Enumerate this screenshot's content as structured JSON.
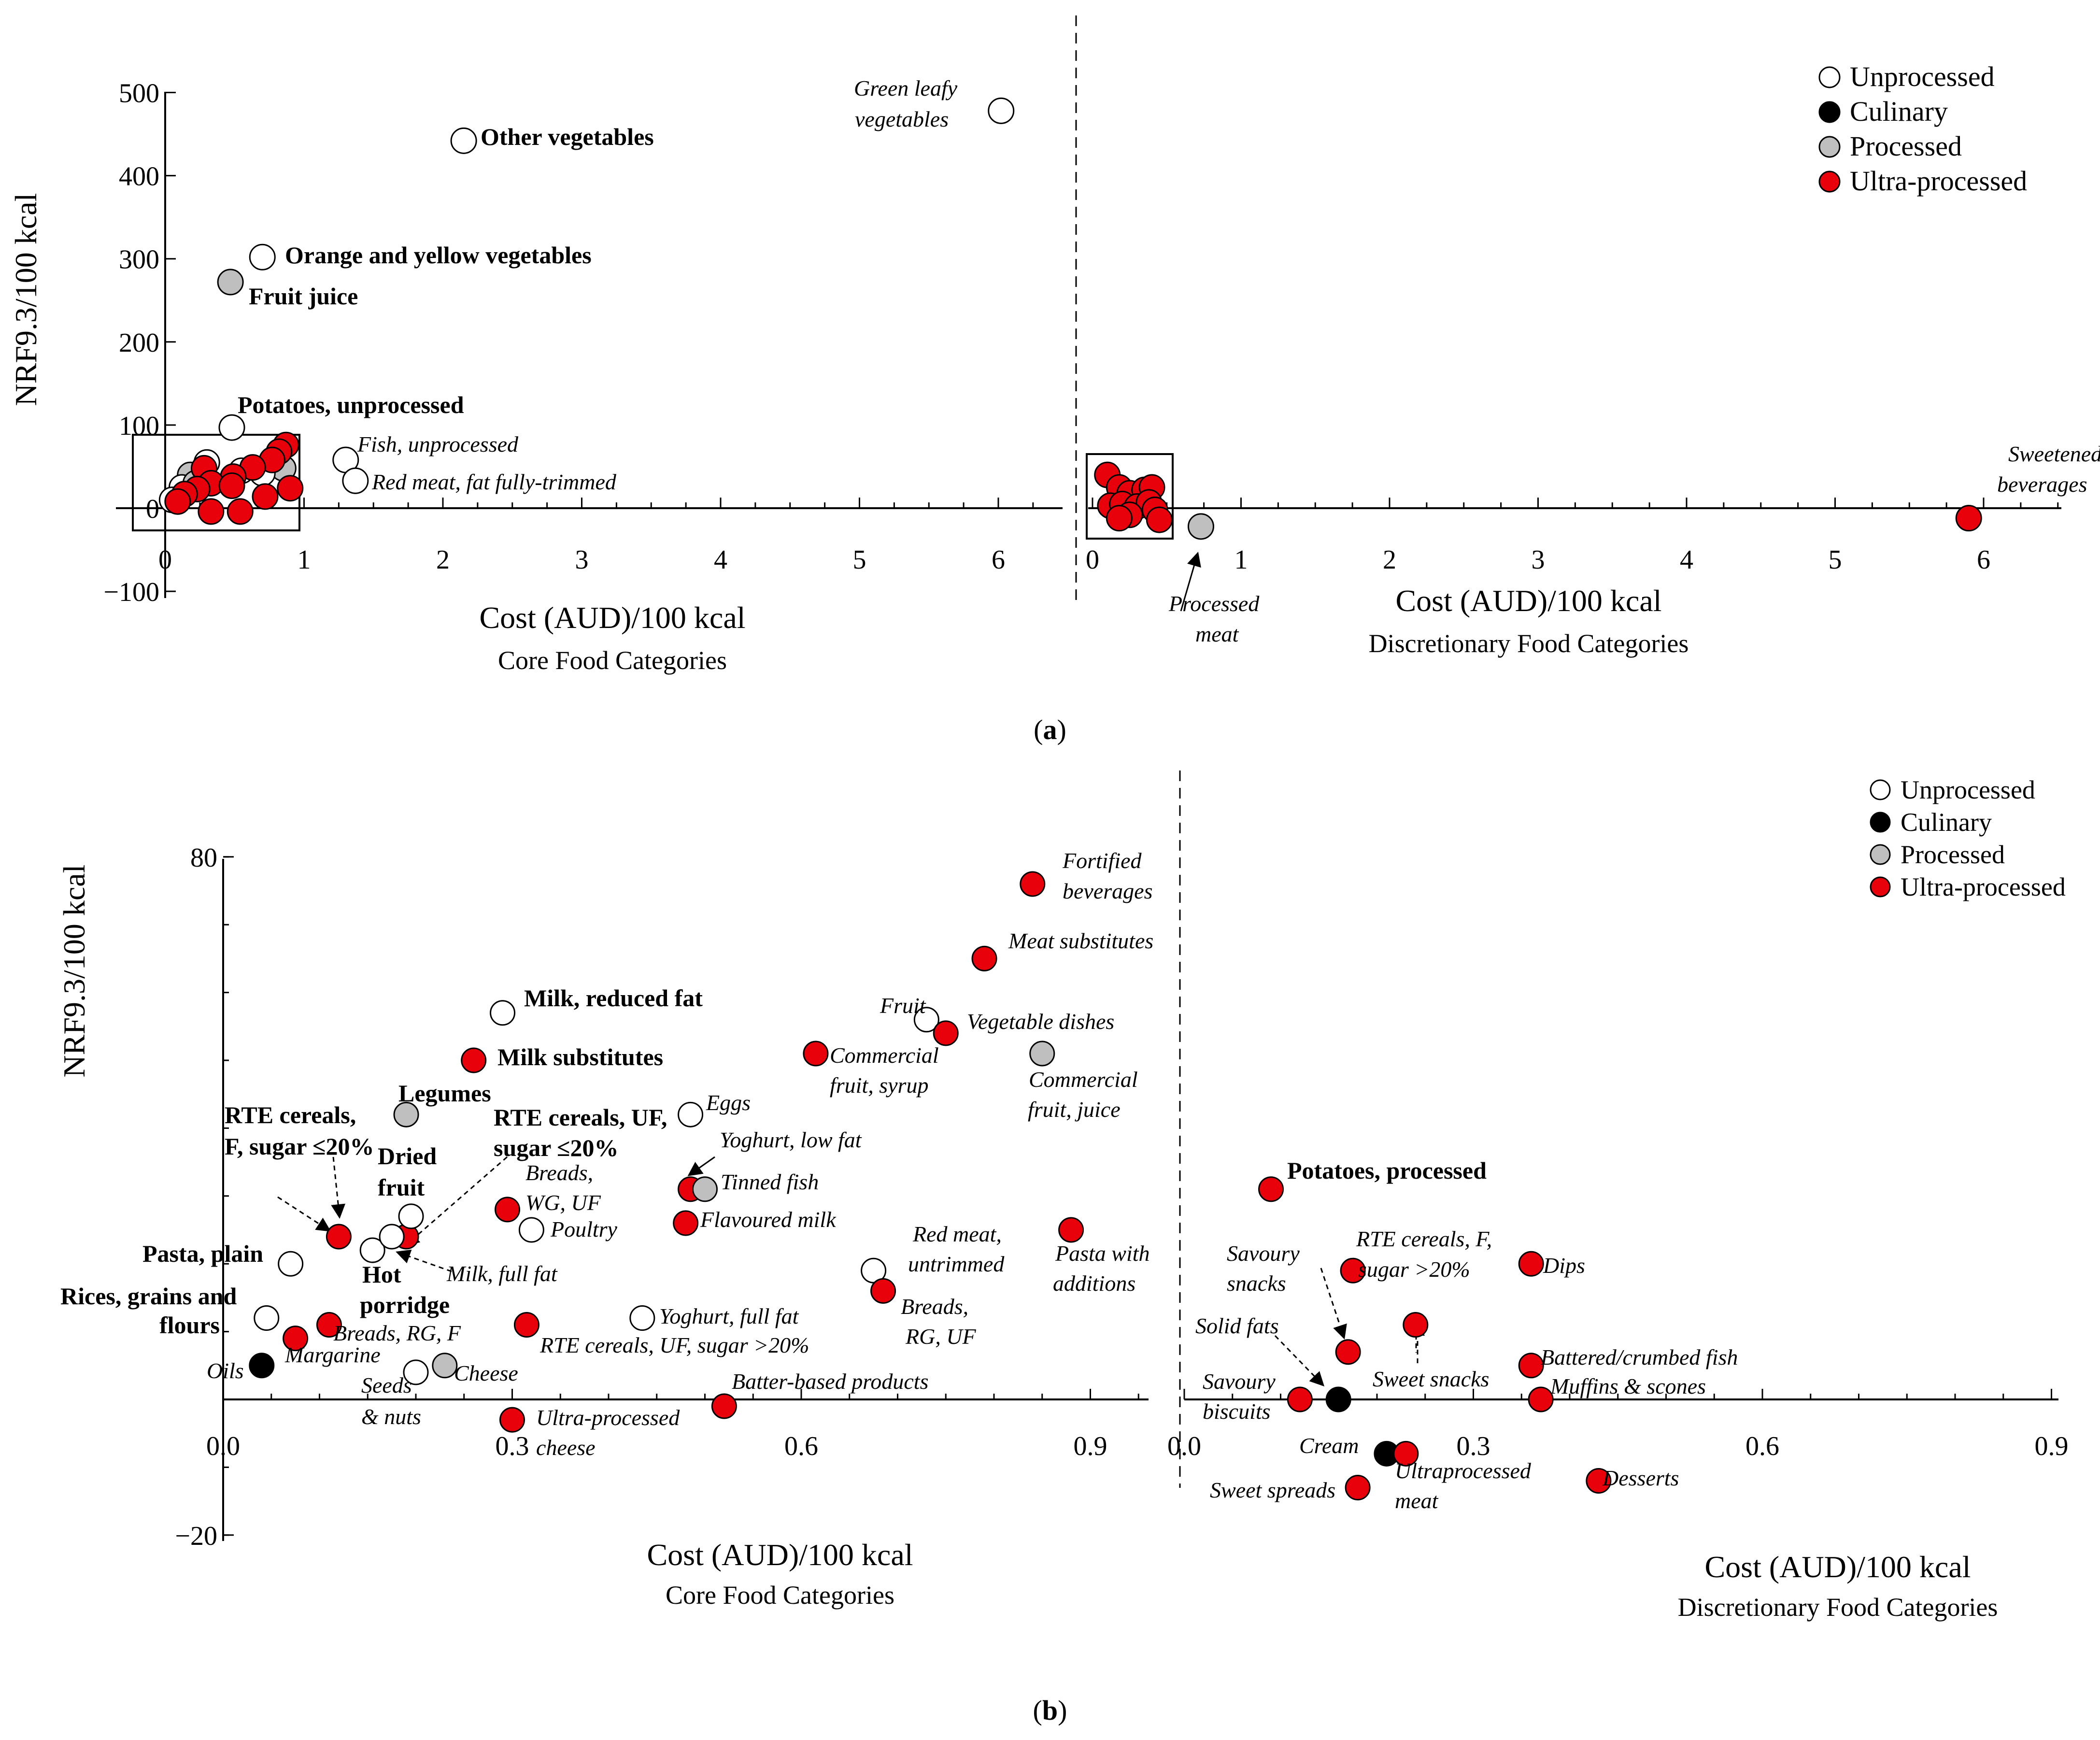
{
  "panel_a_label": "a",
  "panel_b_label": "b",
  "colors": {
    "unprocessed": "#ffffff",
    "culinary": "#000000",
    "processed": "#bfbfbf",
    "ultra": "#e8000b",
    "stroke": "#000000"
  },
  "legend": {
    "unprocessed": "Unprocessed",
    "culinary": "Culinary",
    "processed": "Processed",
    "ultra": "Ultra-processed"
  },
  "chart_data": [
    {
      "id": "a-core",
      "type": "scatter",
      "xlabel": "Cost (AUD)/100 kcal",
      "subtitle": "Core Food Categories",
      "ylabel": "NRF9.3/100 kcal",
      "xlim": [
        0,
        6.5
      ],
      "ylim": [
        -100,
        500
      ],
      "xticks": [
        "0",
        "1",
        "2",
        "3",
        "4",
        "5",
        "6"
      ],
      "yticks": [
        "−100",
        "0",
        "100",
        "200",
        "300",
        "400",
        "500"
      ],
      "points": [
        {
          "x": 2.15,
          "y": 442,
          "cat": "unprocessed",
          "label": "Other vegetables",
          "bold": true
        },
        {
          "x": 0.7,
          "y": 302,
          "cat": "unprocessed",
          "label": "Orange and yellow vegetables",
          "bold": true
        },
        {
          "x": 0.47,
          "y": 272,
          "cat": "processed",
          "label": "Fruit juice",
          "bold": true
        },
        {
          "x": 0.48,
          "y": 97,
          "cat": "unprocessed",
          "label": "Potatoes, unprocessed",
          "bold": true
        },
        {
          "x": 6.02,
          "y": 478,
          "cat": "unprocessed",
          "label": "Green leafy vegetables",
          "italic": true
        },
        {
          "x": 1.3,
          "y": 58,
          "cat": "unprocessed",
          "label": "Fish, unprocessed",
          "italic": true
        },
        {
          "x": 1.37,
          "y": 33,
          "cat": "unprocessed",
          "label": "Red meat, fat fully-trimmed",
          "italic": true
        },
        {
          "x": 0.3,
          "y": 55,
          "cat": "unprocessed"
        },
        {
          "x": 0.18,
          "y": 40,
          "cat": "processed"
        },
        {
          "x": 0.12,
          "y": 25,
          "cat": "unprocessed"
        },
        {
          "x": 0.05,
          "y": 10,
          "cat": "unprocessed"
        },
        {
          "x": 0.85,
          "y": 48,
          "cat": "processed"
        },
        {
          "x": 0.55,
          "y": 45,
          "cat": "unprocessed"
        },
        {
          "x": 0.7,
          "y": 42,
          "cat": "unprocessed"
        },
        {
          "x": 0.22,
          "y": 30,
          "cat": "processed"
        },
        {
          "x": 0.87,
          "y": 76,
          "cat": "ultra"
        },
        {
          "x": 0.82,
          "y": 68,
          "cat": "ultra"
        },
        {
          "x": 0.77,
          "y": 58,
          "cat": "ultra"
        },
        {
          "x": 0.63,
          "y": 49,
          "cat": "ultra"
        },
        {
          "x": 0.28,
          "y": 48,
          "cat": "ultra"
        },
        {
          "x": 0.49,
          "y": 38,
          "cat": "ultra"
        },
        {
          "x": 0.33,
          "y": 30,
          "cat": "ultra"
        },
        {
          "x": 0.48,
          "y": 27,
          "cat": "ultra"
        },
        {
          "x": 0.23,
          "y": 23,
          "cat": "ultra"
        },
        {
          "x": 0.9,
          "y": 24,
          "cat": "ultra"
        },
        {
          "x": 0.14,
          "y": 17,
          "cat": "ultra"
        },
        {
          "x": 0.72,
          "y": 14,
          "cat": "ultra"
        },
        {
          "x": 0.09,
          "y": 8,
          "cat": "ultra"
        },
        {
          "x": 0.33,
          "y": -4,
          "cat": "ultra"
        },
        {
          "x": 0.54,
          "y": -4,
          "cat": "ultra"
        }
      ]
    },
    {
      "id": "a-disc",
      "type": "scatter",
      "xlabel": "Cost (AUD)/100 kcal",
      "subtitle": "Discretionary Food Categories",
      "xlim": [
        0,
        6.5
      ],
      "ylim": [
        -100,
        500
      ],
      "xticks": [
        "0",
        "1",
        "2",
        "3",
        "4",
        "5",
        "6"
      ],
      "points": [
        {
          "x": 5.9,
          "y": -12,
          "cat": "ultra",
          "label": "Sweetened beverages",
          "italic": true
        },
        {
          "x": 0.73,
          "y": -22,
          "cat": "processed",
          "label": "Processed meat",
          "italic": true
        },
        {
          "x": 0.1,
          "y": 40,
          "cat": "ultra"
        },
        {
          "x": 0.18,
          "y": 25,
          "cat": "ultra"
        },
        {
          "x": 0.25,
          "y": 18,
          "cat": "ultra"
        },
        {
          "x": 0.35,
          "y": 22,
          "cat": "ultra"
        },
        {
          "x": 0.4,
          "y": 25,
          "cat": "ultra"
        },
        {
          "x": 0.12,
          "y": 3,
          "cat": "ultra"
        },
        {
          "x": 0.2,
          "y": 5,
          "cat": "ultra"
        },
        {
          "x": 0.3,
          "y": 2,
          "cat": "ultra"
        },
        {
          "x": 0.38,
          "y": 7,
          "cat": "ultra"
        },
        {
          "x": 0.42,
          "y": -2,
          "cat": "ultra"
        },
        {
          "x": 0.25,
          "y": -8,
          "cat": "ultra"
        },
        {
          "x": 0.18,
          "y": -12,
          "cat": "ultra"
        },
        {
          "x": 0.45,
          "y": -14,
          "cat": "ultra"
        }
      ]
    },
    {
      "id": "b-core",
      "type": "scatter",
      "xlabel": "Cost (AUD)/100 kcal",
      "subtitle": "Core Food Categories",
      "ylabel": "NRF9.3/100 kcal",
      "xlim": [
        0,
        0.95
      ],
      "ylim": [
        -20,
        80
      ],
      "xticks": [
        "0.0",
        "0.3",
        "0.6",
        "0.9"
      ],
      "yticks": [
        "−20",
        "80"
      ],
      "points": [
        {
          "x": 0.29,
          "y": 57,
          "cat": "unprocessed",
          "label": "Milk, reduced fat",
          "bold": true
        },
        {
          "x": 0.26,
          "y": 50,
          "cat": "ultra",
          "label": "Milk substitutes",
          "bold": true
        },
        {
          "x": 0.19,
          "y": 42,
          "cat": "processed",
          "label": "Legumes",
          "bold": true
        },
        {
          "x": 0.12,
          "y": 24,
          "cat": "ultra",
          "label": "RTE cereals, F, sugar ≤20%",
          "bold": true
        },
        {
          "x": 0.19,
          "y": 24,
          "cat": "ultra",
          "label": "RTE cereals, UF, sugar ≤20%",
          "bold": true
        },
        {
          "x": 0.195,
          "y": 27,
          "cat": "unprocessed",
          "label": "Dried fruit",
          "bold": true
        },
        {
          "x": 0.155,
          "y": 22,
          "cat": "unprocessed",
          "label": "Hot porridge",
          "bold": true
        },
        {
          "x": 0.175,
          "y": 24,
          "cat": "unprocessed",
          "label": "Milk, full fat",
          "italic": true
        },
        {
          "x": 0.07,
          "y": 20,
          "cat": "unprocessed",
          "label": "Pasta, plain",
          "bold": true
        },
        {
          "x": 0.045,
          "y": 12,
          "cat": "unprocessed",
          "label": "Rices, grains and flours",
          "bold": true
        },
        {
          "x": 0.075,
          "y": 9,
          "cat": "ultra",
          "label": "Margarine",
          "italic": true
        },
        {
          "x": 0.11,
          "y": 11,
          "cat": "ultra",
          "label": "Breads, RG, F",
          "italic": true
        },
        {
          "x": 0.04,
          "y": 5,
          "cat": "culinary",
          "label": "Oils",
          "italic": true
        },
        {
          "x": 0.2,
          "y": 4,
          "cat": "unprocessed",
          "label": "Seeds & nuts",
          "italic": true
        },
        {
          "x": 0.23,
          "y": 5,
          "cat": "processed",
          "label": "Cheese",
          "italic": true
        },
        {
          "x": 0.3,
          "y": -3,
          "cat": "ultra",
          "label": "Ultra-processed cheese",
          "italic": true
        },
        {
          "x": 0.315,
          "y": 11,
          "cat": "ultra",
          "label": "RTE cereals, UF, sugar >20%",
          "italic": true
        },
        {
          "x": 0.295,
          "y": 28,
          "cat": "ultra",
          "label": "Breads, WG, UF",
          "italic": true
        },
        {
          "x": 0.32,
          "y": 25,
          "cat": "unprocessed",
          "label": "Poultry",
          "italic": true
        },
        {
          "x": 0.435,
          "y": 12,
          "cat": "unprocessed",
          "label": "Yoghurt, full fat",
          "italic": true
        },
        {
          "x": 0.52,
          "y": -1,
          "cat": "ultra",
          "label": "Batter-based products",
          "italic": true
        },
        {
          "x": 0.485,
          "y": 42,
          "cat": "unprocessed",
          "label": "Eggs",
          "italic": true
        },
        {
          "x": 0.485,
          "y": 31,
          "cat": "ultra",
          "label": "Yoghurt, low fat",
          "italic": true
        },
        {
          "x": 0.5,
          "y": 31,
          "cat": "processed",
          "label": "Tinned fish",
          "italic": true
        },
        {
          "x": 0.48,
          "y": 26,
          "cat": "ultra",
          "label": "Flavoured milk",
          "italic": true
        },
        {
          "x": 0.615,
          "y": 51,
          "cat": "ultra",
          "label": "Commercial fruit, syrup",
          "italic": true
        },
        {
          "x": 0.73,
          "y": 56,
          "cat": "unprocessed",
          "label": "Fruit",
          "italic": true
        },
        {
          "x": 0.75,
          "y": 54,
          "cat": "ultra",
          "label": "Vegetable dishes",
          "italic": true
        },
        {
          "x": 0.85,
          "y": 51,
          "cat": "processed",
          "label": "Commercial fruit, juice",
          "italic": true
        },
        {
          "x": 0.79,
          "y": 65,
          "cat": "ultra",
          "label": "Meat substitutes",
          "italic": true
        },
        {
          "x": 0.84,
          "y": 76,
          "cat": "ultra",
          "label": "Fortified beverages",
          "italic": true
        },
        {
          "x": 0.675,
          "y": 19,
          "cat": "unprocessed",
          "label": "Red meat, untrimmed",
          "italic": true
        },
        {
          "x": 0.685,
          "y": 16,
          "cat": "ultra",
          "label": "Breads, RG, UF",
          "italic": true
        },
        {
          "x": 0.88,
          "y": 25,
          "cat": "ultra",
          "label": "Pasta with additions",
          "italic": true
        }
      ]
    },
    {
      "id": "b-disc",
      "type": "scatter",
      "xlabel": "Cost (AUD)/100 kcal",
      "subtitle": "Discretionary Food Categories",
      "xlim": [
        0,
        0.95
      ],
      "ylim": [
        -20,
        80
      ],
      "xticks": [
        "0.0",
        "0.3",
        "0.6",
        "0.9"
      ],
      "points": [
        {
          "x": 0.09,
          "y": 31,
          "cat": "ultra",
          "label": "Potatoes, processed",
          "bold": true
        },
        {
          "x": 0.175,
          "y": 19,
          "cat": "ultra",
          "label": "RTE cereals, F, sugar >20%",
          "italic": true
        },
        {
          "x": 0.36,
          "y": 20,
          "cat": "ultra",
          "label": "Dips",
          "italic": true
        },
        {
          "x": 0.17,
          "y": 7,
          "cat": "ultra",
          "label": "Savoury snacks",
          "italic": true
        },
        {
          "x": 0.24,
          "y": 11,
          "cat": "ultra",
          "label": "Sweet snacks",
          "italic": true
        },
        {
          "x": 0.36,
          "y": 5,
          "cat": "ultra",
          "label": "Battered/crumbed fish",
          "italic": true
        },
        {
          "x": 0.37,
          "y": 0,
          "cat": "ultra",
          "label": "Muffins & scones",
          "italic": true
        },
        {
          "x": 0.16,
          "y": 0,
          "cat": "culinary",
          "label": "Solid fats",
          "italic": true
        },
        {
          "x": 0.12,
          "y": 0,
          "cat": "ultra",
          "label": "Savoury biscuits",
          "italic": true
        },
        {
          "x": 0.21,
          "y": -8,
          "cat": "culinary",
          "label": "Cream",
          "italic": true
        },
        {
          "x": 0.23,
          "y": -8,
          "cat": "ultra",
          "label": "Ultraprocessed meat",
          "italic": true
        },
        {
          "x": 0.18,
          "y": -13,
          "cat": "ultra",
          "label": "Sweet spreads",
          "italic": true
        },
        {
          "x": 0.43,
          "y": -12,
          "cat": "ultra",
          "label": "Desserts",
          "italic": true
        }
      ]
    }
  ]
}
